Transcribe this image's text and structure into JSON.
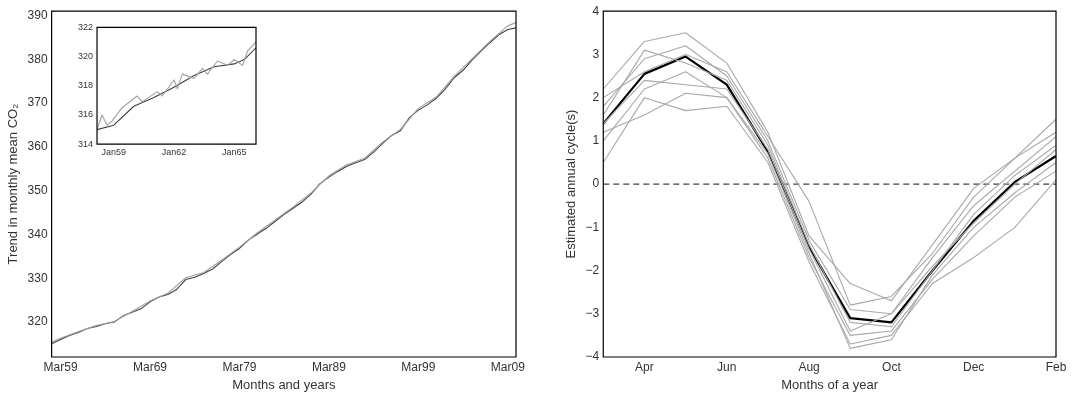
{
  "chart_data": [
    {
      "type": "line",
      "xlabel": "Months and years",
      "ylabel": "Trend in monthly mean CO₂",
      "xlim": [
        "1958-03",
        "2010-02"
      ],
      "ylim": [
        312,
        391
      ],
      "xticks": [
        {
          "value": "1959-03",
          "label": "Mar59"
        },
        {
          "value": "1969-03",
          "label": "Mar69"
        },
        {
          "value": "1979-03",
          "label": "Mar79"
        },
        {
          "value": "1989-03",
          "label": "Mar89"
        },
        {
          "value": "1999-03",
          "label": "Mar99"
        },
        {
          "value": "2009-03",
          "label": "Mar09"
        }
      ],
      "yticks": [
        320,
        330,
        340,
        350,
        360,
        370,
        380,
        390
      ],
      "series": [
        {
          "color": "#a0a0a0",
          "x": [
            "1958-03",
            "1959-03",
            "1961-03",
            "1963-03",
            "1965-03",
            "1967-03",
            "1969-03",
            "1971-03",
            "1973-03",
            "1975-03",
            "1977-03",
            "1979-03",
            "1981-03",
            "1983-03",
            "1985-03",
            "1987-03",
            "1989-03",
            "1991-03",
            "1993-03",
            "1995-03",
            "1997-03",
            "1999-03",
            "2001-03",
            "2003-03",
            "2005-03",
            "2007-03",
            "2009-03",
            "2010-02"
          ],
          "values": [
            315.4,
            316.3,
            317.8,
            319.2,
            320.1,
            322.4,
            324.8,
            326.6,
            330.1,
            331.3,
            334.1,
            337.1,
            340.4,
            343.3,
            346.3,
            349.5,
            353.4,
            355.9,
            357.4,
            361.1,
            364.0,
            368.8,
            371.4,
            376.1,
            380.1,
            384.1,
            387.7,
            388.4
          ]
        },
        {
          "color": "#404040",
          "x": [
            "1958-03",
            "1959-03",
            "1960-03",
            "1961-03",
            "1962-03",
            "1963-03",
            "1964-03",
            "1965-03",
            "1966-03",
            "1967-03",
            "1968-03",
            "1969-03",
            "1970-03",
            "1971-03",
            "1972-03",
            "1973-03",
            "1974-03",
            "1975-03",
            "1976-03",
            "1977-03",
            "1978-03",
            "1979-03",
            "1980-03",
            "1981-03",
            "1982-03",
            "1983-03",
            "1984-03",
            "1985-03",
            "1986-03",
            "1987-03",
            "1988-03",
            "1989-03",
            "1990-03",
            "1991-03",
            "1992-03",
            "1993-03",
            "1994-03",
            "1995-03",
            "1996-03",
            "1997-03",
            "1998-03",
            "1999-03",
            "2000-03",
            "2001-03",
            "2002-03",
            "2003-03",
            "2004-03",
            "2005-03",
            "2006-03",
            "2007-03",
            "2008-03",
            "2009-03",
            "2010-02"
          ],
          "values": [
            315.0,
            316.0,
            316.9,
            317.6,
            318.5,
            319.0,
            319.6,
            320.0,
            321.4,
            322.2,
            323.0,
            324.6,
            325.7,
            326.3,
            327.5,
            329.7,
            330.2,
            331.1,
            332.1,
            333.8,
            335.4,
            336.8,
            338.7,
            340.1,
            341.4,
            343.0,
            344.6,
            346.0,
            347.4,
            349.2,
            351.6,
            353.1,
            354.4,
            355.6,
            356.4,
            357.1,
            358.8,
            360.8,
            362.6,
            363.7,
            366.7,
            368.4,
            369.6,
            371.1,
            373.2,
            375.8,
            377.5,
            379.8,
            381.9,
            383.8,
            385.6,
            386.8,
            387.2
          ]
        }
      ]
    },
    {
      "type": "line",
      "xlim": [
        "1958-03",
        "1966-02"
      ],
      "ylim": [
        314,
        322
      ],
      "xticks": [
        {
          "value": "1959-01",
          "label": "Jan59"
        },
        {
          "value": "1962-01",
          "label": "Jan62"
        },
        {
          "value": "1965-01",
          "label": "Jan65"
        }
      ],
      "yticks": [
        314,
        316,
        318,
        320,
        322
      ],
      "series": [
        {
          "color": "#a0a0a0",
          "x": [
            "1958-03",
            "1958-06",
            "1958-09",
            "1958-12",
            "1959-06",
            "1960-03",
            "1960-06",
            "1961-03",
            "1961-06",
            "1962-01",
            "1962-03",
            "1962-06",
            "1963-01",
            "1963-06",
            "1963-09",
            "1964-03",
            "1964-09",
            "1965-01",
            "1965-06",
            "1965-09",
            "1966-02"
          ],
          "values": [
            315.0,
            316.0,
            315.3,
            315.6,
            316.5,
            317.3,
            316.9,
            317.6,
            317.3,
            318.4,
            317.8,
            318.8,
            318.5,
            319.2,
            318.8,
            319.7,
            319.4,
            319.8,
            319.4,
            320.4,
            321.0
          ]
        },
        {
          "color": "#404040",
          "x": [
            "1958-03",
            "1959-01",
            "1960-01",
            "1961-01",
            "1962-01",
            "1963-01",
            "1964-01",
            "1965-01",
            "1965-07",
            "1966-02"
          ],
          "values": [
            315.0,
            315.3,
            316.6,
            317.2,
            317.9,
            318.7,
            319.3,
            319.5,
            319.8,
            320.6
          ]
        }
      ]
    },
    {
      "type": "line",
      "xlabel": "Months of a year",
      "ylabel": "Estimated annual cycle(s)",
      "ylim": [
        -4,
        4
      ],
      "yticks": [
        -4,
        -3,
        -2,
        -1,
        0,
        1,
        2,
        3,
        4
      ],
      "categories": [
        null,
        "Apr",
        null,
        "Jun",
        null,
        "Aug",
        null,
        "Oct",
        null,
        "Dec",
        null,
        "Feb"
      ],
      "ref_lines": [
        {
          "axis": "y",
          "value": 0,
          "color": "#404040",
          "line_style": "dashed"
        }
      ],
      "series": [
        {
          "color": "#a8a8a8",
          "values": [
            2.2,
            3.3,
            3.5,
            2.8,
            1.2,
            -1.2,
            -2.3,
            -2.7,
            -1.4,
            -0.1,
            0.6,
            1.5
          ]
        },
        {
          "color": "#a8a8a8",
          "values": [
            0.5,
            2.0,
            1.7,
            1.8,
            0.5,
            -1.8,
            -3.7,
            -3.5,
            -2.3,
            -1.7,
            -1.0,
            0.1
          ]
        },
        {
          "color": "#a8a8a8",
          "values": [
            1.8,
            2.9,
            3.2,
            2.5,
            1.0,
            -1.3,
            -2.9,
            -3.0,
            -1.7,
            -0.5,
            0.3,
            1.1
          ]
        },
        {
          "color": "#a8a8a8",
          "values": [
            1.0,
            2.2,
            2.6,
            2.0,
            0.6,
            -1.7,
            -3.5,
            -3.4,
            -2.2,
            -1.2,
            -0.3,
            0.3
          ]
        },
        {
          "color": "#a8a8a8",
          "values": [
            1.6,
            3.1,
            2.8,
            2.4,
            0.9,
            -1.4,
            -3.2,
            -3.3,
            -2.0,
            -0.7,
            0.2,
            0.9
          ]
        },
        {
          "color": "#a8a8a8",
          "values": [
            1.2,
            1.6,
            2.1,
            2.0,
            0.7,
            -1.6,
            -3.8,
            -3.6,
            -2.1,
            -1.0,
            -0.2,
            0.5
          ]
        },
        {
          "color": "#a8a8a8",
          "values": [
            2.0,
            2.6,
            3.0,
            2.6,
            1.1,
            -0.4,
            -2.8,
            -2.6,
            -1.6,
            -0.3,
            0.6,
            1.2
          ]
        },
        {
          "color": "#a8a8a8",
          "values": [
            1.4,
            2.4,
            2.3,
            2.2,
            0.8,
            -1.5,
            -3.4,
            -3.0,
            -1.9,
            -0.9,
            0.0,
            0.8
          ]
        },
        {
          "color": "#000000",
          "values": [
            1.4,
            2.55,
            2.95,
            2.3,
            0.75,
            -1.45,
            -3.1,
            -3.2,
            -2.0,
            -0.85,
            0.05,
            0.65
          ]
        }
      ]
    }
  ]
}
